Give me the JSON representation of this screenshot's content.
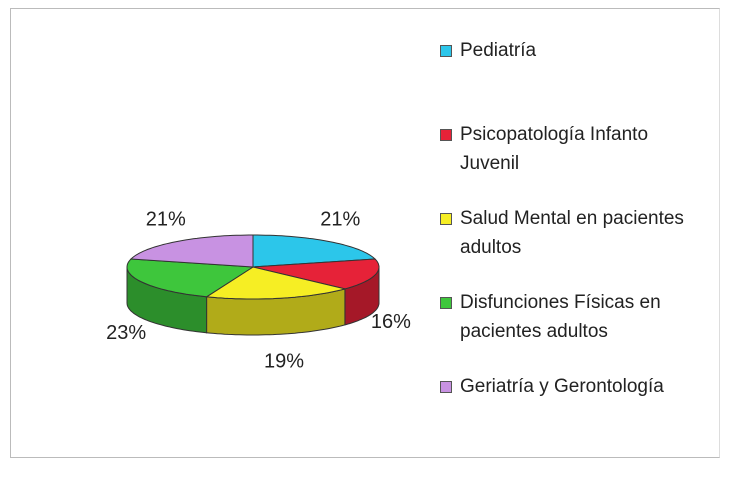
{
  "chart_data": {
    "type": "pie",
    "categories": [
      "Pediatría",
      "Psicopatología Infanto Juvenil",
      "Salud Mental en pacientes adultos",
      "Disfunciones Físicas en pacientes adultos",
      "Geriatría y Gerontología"
    ],
    "values": [
      21,
      16,
      19,
      23,
      21
    ],
    "value_labels": [
      "21%",
      "16%",
      "19%",
      "23%",
      "21%"
    ],
    "colors": [
      "#2cc6ea",
      "#e62238",
      "#f6ee24",
      "#3ec63c",
      "#c892e2"
    ],
    "legend": "right"
  }
}
